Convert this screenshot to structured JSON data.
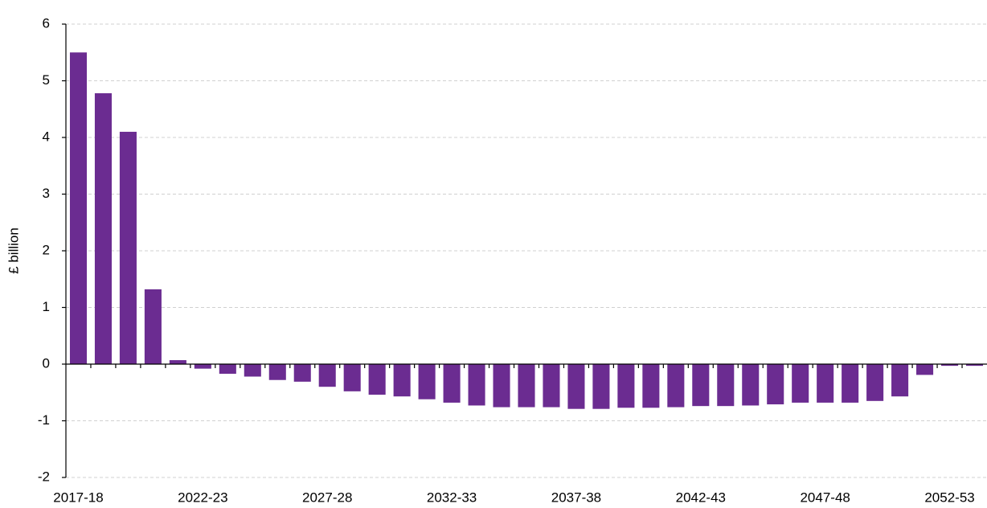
{
  "chart_data": {
    "type": "bar",
    "y_label": "£ billion",
    "categories": [
      "2017-18",
      null,
      null,
      null,
      null,
      "2022-23",
      null,
      null,
      null,
      null,
      "2027-28",
      null,
      null,
      null,
      null,
      "2032-33",
      null,
      null,
      null,
      null,
      "2037-38",
      null,
      null,
      null,
      null,
      "2042-43",
      null,
      null,
      null,
      null,
      "2047-48",
      null,
      null,
      null,
      null,
      "2052-53",
      null
    ],
    "values": [
      5.5,
      4.78,
      4.1,
      1.32,
      0.07,
      -0.08,
      -0.17,
      -0.22,
      -0.28,
      -0.31,
      -0.4,
      -0.48,
      -0.54,
      -0.57,
      -0.62,
      -0.68,
      -0.73,
      -0.76,
      -0.76,
      -0.76,
      -0.79,
      -0.79,
      -0.77,
      -0.77,
      -0.76,
      -0.74,
      -0.74,
      -0.73,
      -0.71,
      -0.68,
      -0.68,
      -0.68,
      -0.65,
      -0.57,
      -0.19,
      -0.03,
      -0.03
    ],
    "color": "#6b2c91",
    "ylim": [
      -2,
      6
    ],
    "yticks": [
      -2,
      -1,
      0,
      1,
      2,
      3,
      4,
      5,
      6
    ],
    "grid": true
  }
}
